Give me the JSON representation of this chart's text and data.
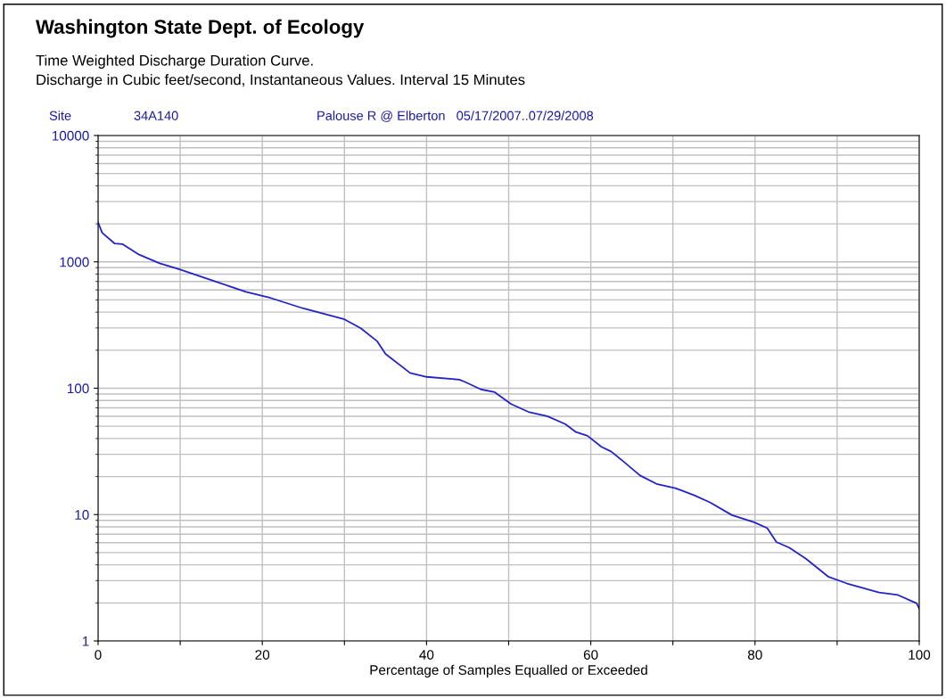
{
  "chart_data": {
    "type": "line",
    "title": "Washington State Dept. of Ecology",
    "subtitle": "Time Weighted Discharge Duration Curve.\nDischarge in Cubic feet/second, Instantaneous Values. Interval 15 Minutes",
    "annotations": [
      "Site",
      "34A140",
      "Palouse R @ Elberton   05/17/2007..07/29/2008"
    ],
    "xlabel": "Percentage of Samples Equalled or Exceeded",
    "log": "y",
    "grid": true,
    "marker": "none",
    "line_style": "solid",
    "xlim": [
      0,
      100
    ],
    "ylim": [
      1,
      10000
    ],
    "xticks": [
      0,
      {
        "value": 10,
        "label": null
      },
      20,
      {
        "value": 30,
        "label": null
      },
      40,
      {
        "value": 50,
        "label": null
      },
      60,
      {
        "value": 70,
        "label": null
      },
      80,
      {
        "value": 90,
        "label": null
      },
      100
    ],
    "yticks": [
      1,
      10,
      100,
      1000,
      10000
    ],
    "series": [
      {
        "color": "#2323c8",
        "x": [
          0,
          0.5,
          2,
          3,
          5,
          7.5,
          10,
          14,
          18,
          21,
          25,
          30,
          32,
          34,
          35,
          38,
          40,
          44,
          44.7,
          46.6,
          48.3,
          50.3,
          52.4,
          54.7,
          56.9,
          58.2,
          59.6,
          61.3,
          62.5,
          64.1,
          66,
          68,
          70.3,
          72.6,
          74.5,
          77.2,
          79.9,
          81.5,
          82.6,
          84.2,
          86.2,
          88.9,
          91.2,
          95.1,
          97.4,
          99.7,
          100
        ],
        "values": [
          2050,
          1700,
          1400,
          1380,
          1140,
          975,
          870,
          710,
          580,
          518,
          428,
          351,
          298,
          235,
          187,
          132,
          123,
          117,
          112,
          98,
          93,
          75,
          65,
          60,
          52,
          45,
          42,
          34.4,
          31.5,
          25.9,
          20.4,
          17.5,
          16.2,
          14.2,
          12.5,
          9.9,
          8.7,
          7.8,
          6.07,
          5.46,
          4.47,
          3.23,
          2.85,
          2.42,
          2.31,
          1.98,
          1.8
        ]
      }
    ]
  }
}
